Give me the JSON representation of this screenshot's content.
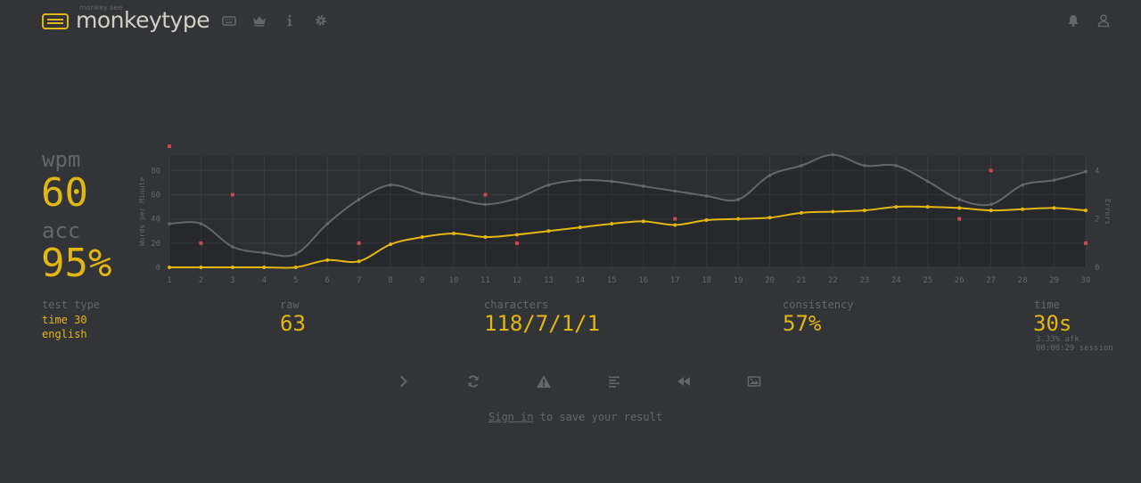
{
  "header": {
    "brand_small": "monkey see",
    "brand": "monkeytype"
  },
  "stats": {
    "wpm_label": "wpm",
    "wpm_value": "60",
    "acc_label": "acc",
    "acc_value": "95%",
    "test_type_label": "test type",
    "test_type_mode": "time 30",
    "test_type_language": "english",
    "raw_label": "raw",
    "raw_value": "63",
    "characters_label": "characters",
    "characters_value": "118/7/1/1",
    "consistency_label": "consistency",
    "consistency_value": "57%",
    "time_label": "time",
    "time_value": "30s",
    "afk": "3.33% afk",
    "session": "00:00:29 session"
  },
  "footer": {
    "signin_link": "Sign in",
    "signin_rest": " to save your result"
  },
  "colors": {
    "background": "#323437",
    "accent": "#e2b714",
    "sub": "#646669",
    "text": "#d1d0c5",
    "error": "#ca4754"
  },
  "chart_data": {
    "type": "line",
    "x": [
      1,
      2,
      3,
      4,
      5,
      6,
      7,
      8,
      9,
      10,
      11,
      12,
      13,
      14,
      15,
      16,
      17,
      18,
      19,
      20,
      21,
      22,
      23,
      24,
      25,
      26,
      27,
      28,
      29,
      30
    ],
    "xlim": [
      1,
      30
    ],
    "ylabel": "Words per Minute",
    "ylim": [
      0,
      92
    ],
    "yticks": [
      0,
      20,
      40,
      60,
      80
    ],
    "y2label": "Errors",
    "y2lim": [
      0,
      4.6
    ],
    "y2ticks": [
      0,
      2,
      4
    ],
    "grid": true,
    "series": [
      {
        "name": "raw",
        "color": "#646669",
        "values": [
          36,
          36,
          17,
          12,
          11,
          36,
          56,
          68,
          61,
          57,
          52,
          57,
          68,
          72,
          71,
          67,
          63,
          59,
          56,
          76,
          84,
          93,
          84,
          84,
          71,
          56,
          52,
          68,
          72,
          79
        ]
      },
      {
        "name": "wpm",
        "color": "#e2b714",
        "values": [
          0,
          0,
          0,
          0,
          0,
          6,
          5,
          19,
          25,
          28,
          25,
          27,
          30,
          33,
          36,
          38,
          35,
          39,
          40,
          41,
          45,
          46,
          47,
          50,
          50,
          49,
          47,
          48,
          49,
          47
        ]
      },
      {
        "name": "errors",
        "color": "#ca4754",
        "x": [
          1,
          2,
          3,
          7,
          11,
          12,
          17,
          26,
          27,
          30
        ],
        "values": [
          5,
          1,
          3,
          1,
          3,
          1,
          2,
          2,
          4,
          1
        ]
      }
    ]
  }
}
